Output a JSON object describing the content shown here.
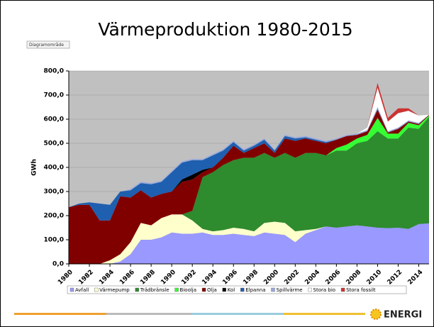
{
  "chart_data": {
    "type": "stacked_area",
    "title": "Värmeproduktion 1980-2015",
    "tag": "Diagramområde",
    "logo": "ENERGI",
    "ylabel": "GWh",
    "x": [
      1980,
      1981,
      1982,
      1983,
      1984,
      1985,
      1986,
      1987,
      1988,
      1989,
      1990,
      1991,
      1992,
      1993,
      1994,
      1995,
      1996,
      1997,
      1998,
      1999,
      2000,
      2001,
      2002,
      2003,
      2004,
      2005,
      2006,
      2007,
      2008,
      2009,
      2010,
      2011,
      2012,
      2013,
      2014,
      2015
    ],
    "xlim": [
      1980,
      2015
    ],
    "xticks": [
      1980,
      1982,
      1984,
      1986,
      1988,
      1990,
      1992,
      1994,
      1996,
      1998,
      2000,
      2002,
      2004,
      2006,
      2008,
      2010,
      2012,
      2014
    ],
    "ylim": [
      0,
      800
    ],
    "yticks": [
      {
        "value": 0,
        "label": "0,0"
      },
      {
        "value": 100,
        "label": "100,0"
      },
      {
        "value": 200,
        "label": "200,0"
      },
      {
        "value": 300,
        "label": "300,0"
      },
      {
        "value": 400,
        "label": "400,0"
      },
      {
        "value": 500,
        "label": "500,0"
      },
      {
        "value": 600,
        "label": "600,0"
      },
      {
        "value": 700,
        "label": "700,0"
      },
      {
        "value": 800,
        "label": "800,0"
      }
    ],
    "series": [
      {
        "name": "Avfall",
        "color": "#9999ff",
        "values": [
          0,
          0,
          0,
          0,
          0,
          10,
          40,
          100,
          100,
          110,
          130,
          125,
          125,
          130,
          120,
          120,
          125,
          120,
          115,
          130,
          125,
          120,
          90,
          125,
          140,
          155,
          150,
          155,
          160,
          155,
          150,
          148,
          150,
          145,
          165,
          168
        ]
      },
      {
        "name": "Värmepump",
        "color": "#ffffcc",
        "values": [
          0,
          0,
          0,
          0,
          15,
          30,
          50,
          70,
          60,
          80,
          75,
          80,
          55,
          15,
          15,
          20,
          25,
          25,
          20,
          40,
          50,
          50,
          45,
          15,
          5,
          0,
          0,
          0,
          0,
          0,
          0,
          0,
          0,
          0,
          0,
          0
        ]
      },
      {
        "name": "Trädbränsle",
        "color": "#2e8b2e",
        "values": [
          0,
          0,
          0,
          0,
          0,
          0,
          0,
          0,
          0,
          0,
          0,
          0,
          40,
          215,
          245,
          270,
          280,
          295,
          305,
          290,
          265,
          290,
          305,
          320,
          315,
          295,
          320,
          315,
          340,
          355,
          400,
          372,
          370,
          420,
          395,
          442
        ]
      },
      {
        "name": "Bioolja",
        "color": "#33ff33",
        "values": [
          0,
          0,
          0,
          0,
          0,
          0,
          0,
          0,
          0,
          0,
          0,
          0,
          0,
          0,
          0,
          0,
          0,
          0,
          0,
          0,
          0,
          0,
          0,
          0,
          0,
          0,
          10,
          25,
          20,
          25,
          55,
          20,
          20,
          20,
          15,
          5
        ]
      },
      {
        "name": "Olja",
        "color": "#800000",
        "values": [
          235,
          245,
          245,
          180,
          165,
          240,
          185,
          135,
          115,
          100,
          95,
          135,
          130,
          20,
          20,
          30,
          60,
          20,
          40,
          40,
          20,
          60,
          70,
          60,
          50,
          50,
          35,
          35,
          15,
          15,
          35,
          5,
          20,
          5,
          5,
          3
        ]
      },
      {
        "name": "Kol",
        "color": "#000000",
        "values": [
          0,
          0,
          0,
          0,
          0,
          0,
          0,
          0,
          0,
          0,
          0,
          10,
          20,
          10,
          0,
          0,
          0,
          0,
          0,
          0,
          0,
          0,
          0,
          0,
          0,
          0,
          0,
          0,
          0,
          0,
          0,
          0,
          0,
          0,
          0,
          0
        ]
      },
      {
        "name": "Elpanna",
        "color": "#1f5faf",
        "values": [
          0,
          5,
          10,
          70,
          65,
          20,
          30,
          30,
          55,
          50,
          80,
          70,
          60,
          40,
          50,
          30,
          15,
          10,
          10,
          15,
          10,
          10,
          10,
          5,
          5,
          5,
          0,
          0,
          0,
          0,
          0,
          0,
          0,
          0,
          0,
          0
        ]
      },
      {
        "name": "Spillvärme",
        "color": "#99aadd",
        "values": [
          0,
          0,
          0,
          0,
          0,
          0,
          5,
          5,
          5,
          5,
          5,
          5,
          5,
          5,
          5,
          5,
          5,
          5,
          5,
          5,
          5,
          5,
          5,
          5,
          5,
          5,
          5,
          5,
          5,
          5,
          10,
          5,
          5,
          5,
          5,
          0
        ]
      },
      {
        "name": "Stora bio",
        "color": "#ffffff",
        "values": [
          0,
          0,
          0,
          0,
          0,
          0,
          0,
          0,
          0,
          0,
          0,
          0,
          0,
          0,
          0,
          0,
          0,
          0,
          0,
          0,
          0,
          0,
          0,
          0,
          0,
          0,
          0,
          0,
          0,
          10,
          80,
          40,
          60,
          40,
          30,
          0
        ]
      },
      {
        "name": "Stora fossilt",
        "color": "#cc3333",
        "values": [
          0,
          0,
          0,
          0,
          0,
          0,
          0,
          0,
          0,
          0,
          0,
          0,
          0,
          0,
          0,
          0,
          0,
          0,
          0,
          0,
          0,
          0,
          0,
          0,
          0,
          0,
          0,
          0,
          0,
          0,
          20,
          15,
          20,
          10,
          0,
          0
        ]
      }
    ]
  }
}
